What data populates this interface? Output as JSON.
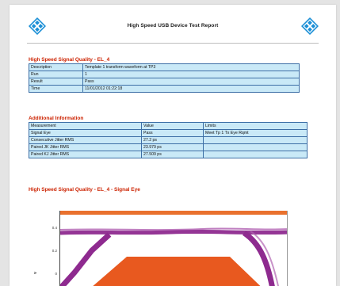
{
  "report": {
    "title": "High Speed USB Device Test Report"
  },
  "section1": {
    "title": "High Speed Signal Quality - EL_4",
    "rows": [
      {
        "label": "Description",
        "value": "Template 1 transform waveform at TP3"
      },
      {
        "label": "Run",
        "value": "1"
      },
      {
        "label": "Result",
        "value": "Pass"
      },
      {
        "label": "Time",
        "value": "11/01/2012 01:22:18"
      }
    ]
  },
  "section2": {
    "title": "Additional Information",
    "header": [
      "Measurement",
      "Value",
      "Limits"
    ],
    "rows": [
      [
        "Signal Eye",
        "Pass",
        "Meet Tp 1 Tx Eye Rqmt"
      ],
      [
        "Consecutive Jitter RMS",
        "27.2 ps",
        ""
      ],
      [
        "Paired JK Jitter RMS",
        "23.979 ps",
        ""
      ],
      [
        "Paired KJ Jitter RMS",
        "27.509 ps",
        ""
      ]
    ]
  },
  "section3": {
    "title": "High Speed Signal Quality - EL_4 - Signal Eye"
  },
  "chart": {
    "y_ticks": [
      "0.4",
      "0.2",
      "0"
    ],
    "y_label": "V",
    "colors": {
      "eye_trace": "#8e2a8f",
      "mask": "#e8591f",
      "top_bar": "#e9712e",
      "baseline": "#8e2a8f"
    }
  },
  "icons": {
    "logo": "rohde-schwarz-diamond-logo"
  }
}
